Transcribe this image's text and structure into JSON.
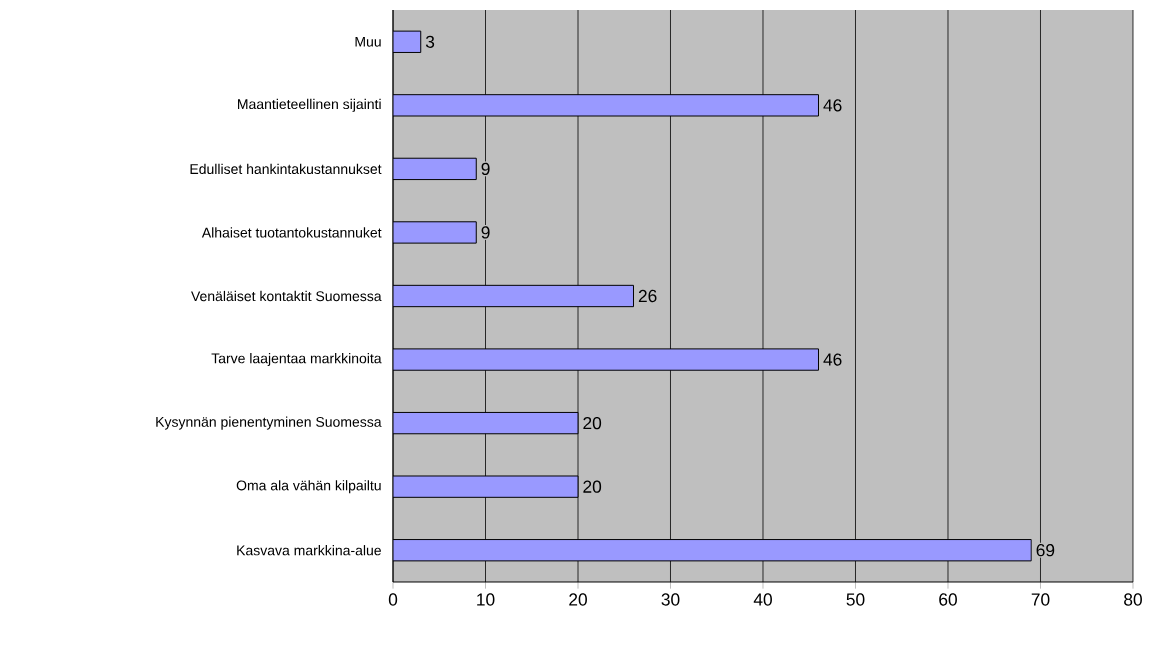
{
  "chart_data": {
    "type": "bar",
    "orientation": "horizontal",
    "categories": [
      "Muu",
      "Maantieteellinen sijainti",
      "Edulliset hankintakustannukset",
      "Alhaiset tuotantokustannuket",
      "Venäläiset kontaktit Suomessa",
      "Tarve laajentaa markkinoita",
      "Kysynnän pienentyminen Suomessa",
      "Oma ala vähän kilpailtu",
      "Kasvava markkina-alue"
    ],
    "values": [
      3,
      46,
      9,
      9,
      26,
      46,
      20,
      20,
      69
    ],
    "color": "#9999ff",
    "xlim": [
      0,
      80
    ],
    "xticks": [
      0,
      10,
      20,
      30,
      40,
      50,
      60,
      70,
      80
    ],
    "grid": "x",
    "data_labels": true
  }
}
